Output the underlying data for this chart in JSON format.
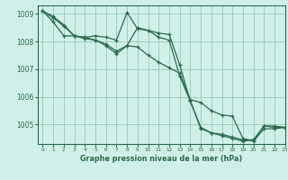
{
  "bg_color": "#cff0e8",
  "grid_color": "#9ecfbf",
  "line_color": "#2d6a4f",
  "title": "Graphe pression niveau de la mer (hPa)",
  "xlim": [
    -0.5,
    23
  ],
  "ylim": [
    1004.3,
    1009.3
  ],
  "yticks": [
    1005,
    1006,
    1007,
    1008,
    1009
  ],
  "xticks": [
    0,
    1,
    2,
    3,
    4,
    5,
    6,
    7,
    8,
    9,
    10,
    11,
    12,
    13,
    14,
    15,
    16,
    17,
    18,
    19,
    20,
    21,
    22,
    23
  ],
  "line1_x": [
    0,
    1,
    2,
    3,
    4,
    5,
    6,
    7,
    8,
    9,
    10,
    11,
    12,
    13,
    14,
    15,
    16,
    17,
    18,
    19,
    20,
    21,
    22,
    23
  ],
  "line1_y": [
    1009.1,
    1008.85,
    1008.55,
    1008.2,
    1008.1,
    1008.05,
    1007.85,
    1007.55,
    1007.85,
    1008.5,
    1008.4,
    1008.3,
    1008.25,
    1007.15,
    1005.85,
    1004.85,
    1004.7,
    1004.65,
    1004.55,
    1004.45,
    1004.45,
    1004.95,
    1004.9,
    1004.9
  ],
  "line2_x": [
    0,
    1,
    2,
    3,
    4,
    5,
    6,
    7,
    8,
    9,
    10,
    11,
    12,
    13,
    14,
    15,
    16,
    17,
    18,
    19,
    20,
    21,
    22,
    23
  ],
  "line2_y": [
    1009.1,
    1008.7,
    1008.2,
    1008.2,
    1008.15,
    1008.2,
    1008.15,
    1008.05,
    1009.05,
    1008.45,
    1008.4,
    1008.15,
    1008.05,
    1006.75,
    1005.85,
    1004.9,
    1004.7,
    1004.6,
    1004.5,
    1004.4,
    1004.45,
    1004.95,
    1004.95,
    1004.9
  ],
  "line3_x": [
    0,
    1,
    2,
    3,
    4,
    5,
    6,
    7,
    8,
    9,
    10,
    11,
    12,
    13,
    14,
    15,
    16,
    17,
    18,
    19,
    20,
    21,
    22,
    23
  ],
  "line3_y": [
    1009.1,
    1008.9,
    1008.6,
    1008.2,
    1008.15,
    1008.05,
    1007.9,
    1007.65,
    1007.85,
    1007.8,
    1007.5,
    1007.25,
    1007.05,
    1006.85,
    1005.9,
    1005.8,
    1005.5,
    1005.35,
    1005.3,
    1004.5,
    1004.4,
    1004.85,
    1004.85,
    1004.9
  ]
}
